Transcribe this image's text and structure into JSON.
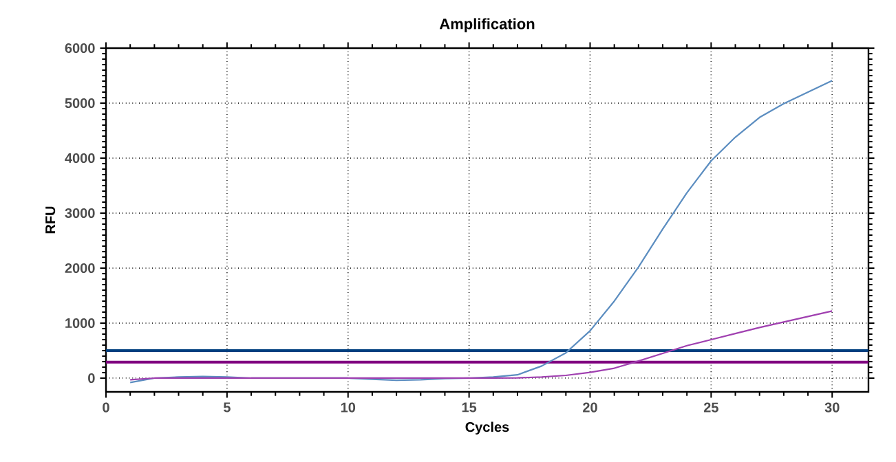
{
  "chart_data": {
    "type": "line",
    "title": "Amplification",
    "xlabel": "Cycles",
    "ylabel": "RFU",
    "xlim": [
      0,
      31.5
    ],
    "ylim": [
      -250,
      6000
    ],
    "xticks": [
      0,
      5,
      10,
      15,
      20,
      25,
      30
    ],
    "yticks": [
      0,
      1000,
      2000,
      3000,
      4000,
      5000,
      6000
    ],
    "grid": true,
    "marker": "none",
    "line_style": "solid",
    "x": [
      1,
      2,
      3,
      4,
      5,
      6,
      7,
      8,
      9,
      10,
      11,
      12,
      13,
      14,
      15,
      16,
      17,
      18,
      19,
      20,
      21,
      22,
      23,
      24,
      25,
      26,
      27,
      28,
      29,
      30
    ],
    "series": [
      {
        "color": "#5b8dc0",
        "values": [
          -80,
          0,
          20,
          30,
          20,
          0,
          0,
          0,
          0,
          0,
          -20,
          -40,
          -30,
          -10,
          0,
          20,
          60,
          220,
          460,
          860,
          1400,
          2020,
          2710,
          3370,
          3950,
          4380,
          4740,
          4990,
          5200,
          5410
        ]
      },
      {
        "color": "#a040b0",
        "values": [
          -30,
          0,
          0,
          0,
          0,
          0,
          0,
          0,
          0,
          0,
          0,
          0,
          0,
          0,
          0,
          0,
          5,
          20,
          50,
          105,
          180,
          310,
          450,
          590,
          700,
          810,
          920,
          1020,
          1120,
          1220
        ]
      }
    ],
    "ref_lines": [
      {
        "axis": "y",
        "value": 500,
        "color": "#003f7f"
      },
      {
        "axis": "y",
        "value": 290,
        "color": "#800080"
      }
    ]
  }
}
